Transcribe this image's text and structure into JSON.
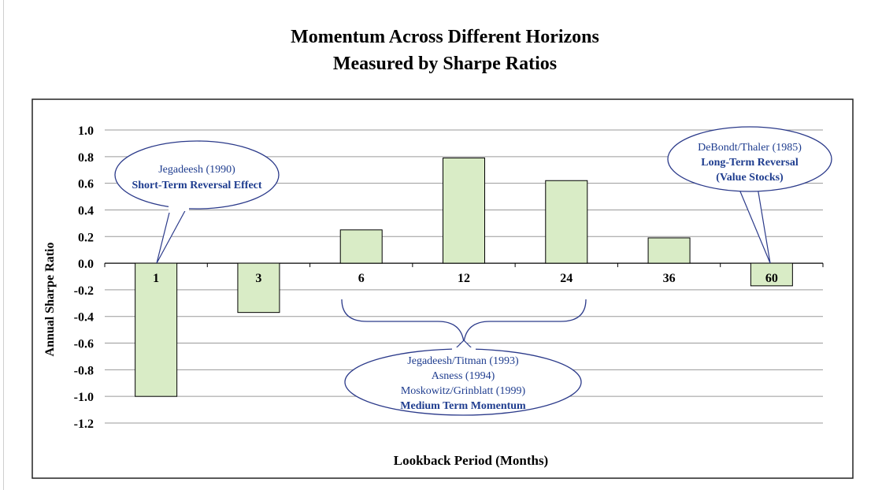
{
  "chart_data": {
    "type": "bar",
    "title_lines": [
      "Momentum Across Different Horizons",
      "Measured by Sharpe Ratios"
    ],
    "xlabel": "Lookback Period (Months)",
    "ylabel": "Annual Sharpe Ratio",
    "ylim": [
      -1.2,
      1.0
    ],
    "yticks": [
      "1.0",
      "0.8",
      "0.6",
      "0.4",
      "0.2",
      "0.0",
      "-0.2",
      "-0.4",
      "-0.6",
      "-0.8",
      "-1.0",
      "-1.2"
    ],
    "categories": [
      "1",
      "3",
      "6",
      "12",
      "24",
      "36",
      "60"
    ],
    "values": [
      -1.0,
      -0.37,
      0.25,
      0.79,
      0.62,
      0.19,
      -0.17
    ],
    "grid": true,
    "colors": {
      "bar_fill": "#d9ecc6",
      "bar_stroke": "#000000",
      "callout_text": "#1f3d8f",
      "callout_stroke": "#2b3a8a"
    },
    "annotations": {
      "short_term": {
        "lines": [
          "Jegadeesh (1990)",
          "Short-Term Reversal Effect"
        ],
        "bold": [
          false,
          true
        ]
      },
      "long_term": {
        "lines": [
          "DeBondt/Thaler (1985)",
          "Long-Term Reversal",
          "(Value Stocks)"
        ],
        "bold": [
          false,
          true,
          true
        ]
      },
      "medium_term": {
        "lines": [
          "Jegadeesh/Titman (1993)",
          "Asness (1994)",
          "Moskowitz/Grinblatt (1999)",
          "Medium Term Momentum"
        ],
        "bold": [
          false,
          false,
          false,
          true
        ]
      }
    }
  }
}
